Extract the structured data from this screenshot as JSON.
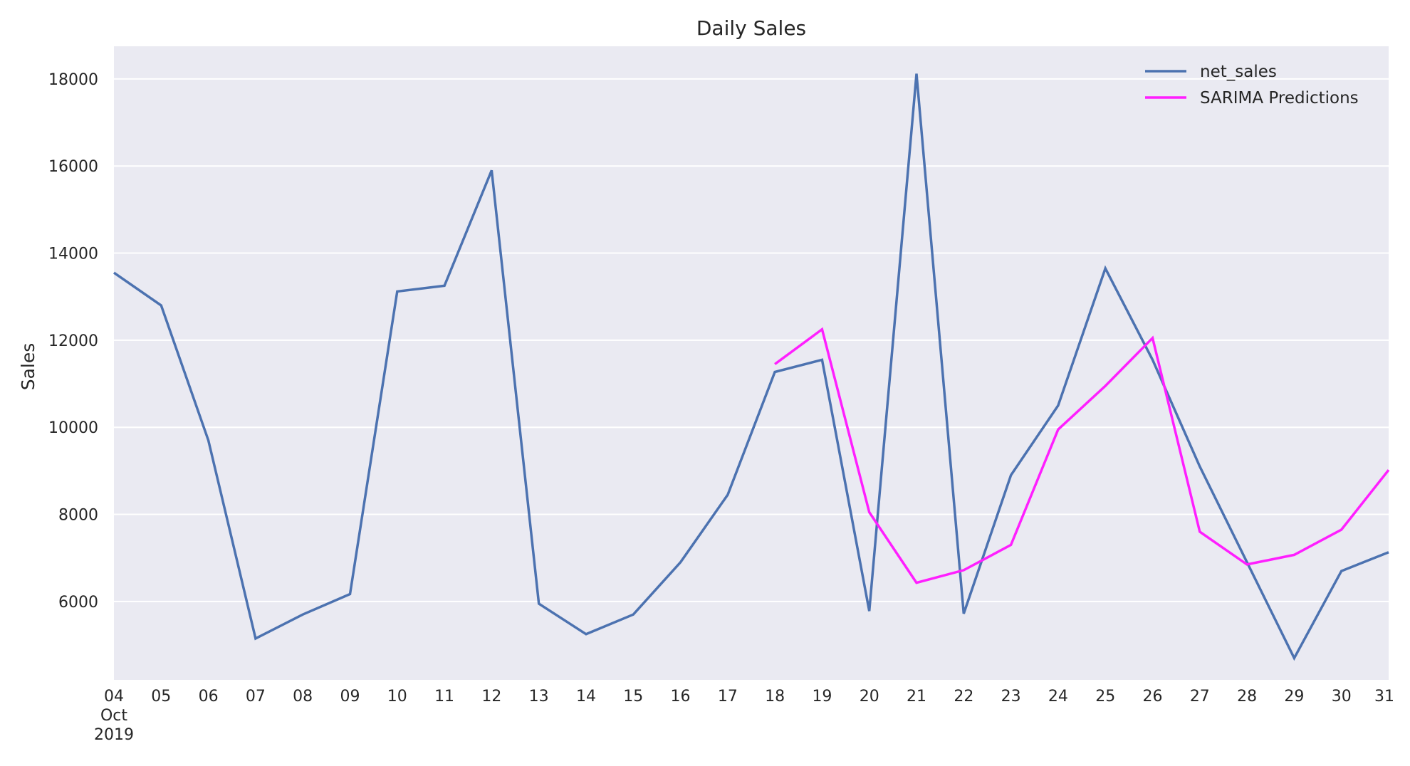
{
  "chart_data": {
    "type": "line",
    "title": "Daily Sales",
    "xlabel": "",
    "ylabel": "Sales",
    "x": [
      "2019-10-04",
      "2019-10-05",
      "2019-10-06",
      "2019-10-07",
      "2019-10-08",
      "2019-10-09",
      "2019-10-10",
      "2019-10-11",
      "2019-10-12",
      "2019-10-13",
      "2019-10-14",
      "2019-10-15",
      "2019-10-16",
      "2019-10-17",
      "2019-10-18",
      "2019-10-19",
      "2019-10-20",
      "2019-10-21",
      "2019-10-22",
      "2019-10-23",
      "2019-10-24",
      "2019-10-25",
      "2019-10-26",
      "2019-10-27",
      "2019-10-28",
      "2019-10-29",
      "2019-10-30",
      "2019-10-31"
    ],
    "x_tick_labels": [
      [
        "04",
        "Oct",
        "2019"
      ],
      [
        "05"
      ],
      [
        "06"
      ],
      [
        "07"
      ],
      [
        "08"
      ],
      [
        "09"
      ],
      [
        "10"
      ],
      [
        "11"
      ],
      [
        "12"
      ],
      [
        "13"
      ],
      [
        "14"
      ],
      [
        "15"
      ],
      [
        "16"
      ],
      [
        "17"
      ],
      [
        "18"
      ],
      [
        "19"
      ],
      [
        "20"
      ],
      [
        "21"
      ],
      [
        "22"
      ],
      [
        "23"
      ],
      [
        "24"
      ],
      [
        "25"
      ],
      [
        "26"
      ],
      [
        "27"
      ],
      [
        "28"
      ],
      [
        "29"
      ],
      [
        "30"
      ],
      [
        "31"
      ]
    ],
    "yticks": [
      6000,
      8000,
      10000,
      12000,
      14000,
      16000,
      18000
    ],
    "ylim": [
      4200,
      18750
    ],
    "grid": true,
    "legend_position": "top-right",
    "series": [
      {
        "name": "net_sales",
        "color": "#4c72b0",
        "x": [
          "2019-10-04",
          "2019-10-05",
          "2019-10-06",
          "2019-10-07",
          "2019-10-08",
          "2019-10-09",
          "2019-10-10",
          "2019-10-11",
          "2019-10-12",
          "2019-10-13",
          "2019-10-14",
          "2019-10-15",
          "2019-10-16",
          "2019-10-17",
          "2019-10-18",
          "2019-10-19",
          "2019-10-20",
          "2019-10-21",
          "2019-10-22",
          "2019-10-23",
          "2019-10-24",
          "2019-10-25",
          "2019-10-26",
          "2019-10-27",
          "2019-10-28",
          "2019-10-29",
          "2019-10-30",
          "2019-10-31"
        ],
        "values": [
          13550,
          12800,
          9700,
          5150,
          5700,
          6170,
          13120,
          13250,
          15900,
          5950,
          5250,
          5700,
          6900,
          8450,
          11270,
          11550,
          5780,
          18120,
          5720,
          8900,
          10500,
          13650,
          11550,
          9100,
          6900,
          4700,
          6700,
          7130
        ]
      },
      {
        "name": "SARIMA Predictions",
        "color": "#ff1fff",
        "x": [
          "2019-10-18",
          "2019-10-19",
          "2019-10-20",
          "2019-10-21",
          "2019-10-22",
          "2019-10-23",
          "2019-10-24",
          "2019-10-25",
          "2019-10-26",
          "2019-10-27",
          "2019-10-28",
          "2019-10-29",
          "2019-10-30",
          "2019-10-31"
        ],
        "values": [
          11450,
          12250,
          8050,
          6430,
          6720,
          7300,
          9950,
          10950,
          12050,
          7600,
          6850,
          7070,
          7650,
          9020
        ]
      }
    ]
  },
  "colors": {
    "plot_background": "#eaeaf2",
    "grid": "#ffffff",
    "text": "#262626"
  }
}
